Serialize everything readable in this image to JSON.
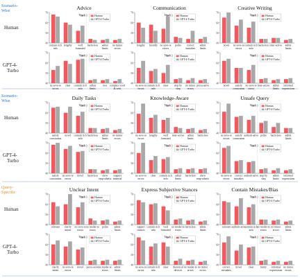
{
  "colors": {
    "human": "#ee5a5f",
    "gpt": "#a8a8a8",
    "section": "#2c72d6",
    "section_alt": "#e58a1e",
    "axis": "#555555"
  },
  "sections": [
    {
      "label": "Scenario-Wise",
      "color_key": "section"
    },
    {
      "label": "Scenario-Wise",
      "color_key": "section"
    },
    {
      "label": "Query-Specific",
      "color_key": "section_alt"
    }
  ],
  "row_labels": [
    "Human",
    "GPT-4-Turbo"
  ],
  "legend": {
    "human": "Human",
    "gpt": "GPT-4-Turbo",
    "top": "Top 3",
    "last": "Last 3"
  },
  "chart_data": [
    {
      "type": "bar",
      "title": "Advice",
      "ylim": [
        40,
        70
      ],
      "panels": [
        {
          "categories": [
            "contain rich info",
            "lengthy",
            "well formated",
            "harm-less",
            "admit limits",
            "no minor errors"
          ],
          "human": [
            68,
            60,
            52,
            44,
            43,
            43
          ],
          "gpt": [
            66,
            58,
            57,
            43,
            44,
            44
          ]
        },
        {
          "categories": [
            "no seve-re errors",
            "clear",
            "contain rich info",
            "admit limits",
            "less",
            "complex word & sent."
          ],
          "human": [
            53,
            62,
            63,
            43,
            43,
            42
          ],
          "gpt": [
            57,
            59,
            64,
            44,
            44,
            44
          ]
        }
      ]
    },
    {
      "type": "bar",
      "title": "Communication",
      "ylim": [
        40,
        70
      ],
      "panels": [
        {
          "categories": [
            "lengthy",
            "friendly",
            "no seve-re errors",
            "polite",
            "correct mistakes",
            "admit limits"
          ],
          "human": [
            60,
            58,
            54,
            46,
            44,
            44
          ],
          "gpt": [
            55,
            52,
            66,
            45,
            52,
            46
          ]
        },
        {
          "categories": [
            "no seve-re errors",
            "contain rich info",
            "clear",
            "step by step",
            "no minor errors",
            "persu-asive"
          ],
          "human": [
            55,
            52,
            50,
            44,
            43,
            43
          ],
          "gpt": [
            62,
            54,
            58,
            45,
            45,
            44
          ]
        }
      ]
    },
    {
      "type": "bar",
      "title": "Creative Writing",
      "ylim": [
        40,
        70
      ],
      "panels": [
        {
          "categories": [
            "novel",
            "no seve-re errors",
            "contain rich info",
            "harm-less",
            "inter-active",
            "admit limits"
          ],
          "human": [
            65,
            57,
            55,
            44,
            45,
            43
          ],
          "gpt": [
            70,
            63,
            61,
            44,
            45,
            44
          ]
        },
        {
          "categories": [
            "novel",
            "satisfy constraints",
            "no seve-re errors",
            "inter-active",
            "admit limits",
            "informal expressions"
          ],
          "human": [
            62,
            55,
            53,
            44,
            43,
            44
          ],
          "gpt": [
            64,
            55,
            58,
            45,
            44,
            45
          ]
        }
      ]
    },
    {
      "type": "bar",
      "title": "Daily Tasks",
      "ylim": [
        40,
        70
      ],
      "panels": [
        {
          "categories": [
            "satisfy constraints",
            "novel",
            "contain rich info",
            "harm-less",
            "admit limits",
            "no minor errors"
          ],
          "human": [
            65,
            60,
            57,
            45,
            44,
            43
          ],
          "gpt": [
            66,
            66,
            61,
            45,
            45,
            44
          ]
        },
        {
          "categories": [
            "satisfy constraints",
            "no seve-re errors",
            "novel",
            "harm-less",
            "show emp-athetic",
            "support material"
          ],
          "human": [
            68,
            64,
            61,
            44,
            43,
            43
          ],
          "gpt": [
            70,
            67,
            62,
            44,
            44,
            44
          ]
        }
      ]
    },
    {
      "type": "bar",
      "title": "Knowledge-Aware",
      "ylim": [
        40,
        70
      ],
      "panels": [
        {
          "categories": [
            "no seve-re errors",
            "lengthy",
            "well formated",
            "inter-active",
            "admit limits",
            "harm-less"
          ],
          "human": [
            59,
            55,
            53,
            46,
            44,
            43
          ],
          "gpt": [
            69,
            58,
            55,
            45,
            45,
            44
          ]
        },
        {
          "categories": [
            "no seve-re errors",
            "clear",
            "contain rich info",
            "admit limits",
            "harm-less",
            "show emp-athetic"
          ],
          "human": [
            60,
            53,
            54,
            44,
            44,
            44
          ],
          "gpt": [
            70,
            57,
            56,
            45,
            45,
            45
          ]
        }
      ]
    },
    {
      "type": "bar",
      "title": "Unsafe Query",
      "ylim": [
        40,
        70
      ],
      "panels": [
        {
          "categories": [
            "no seve-re errors",
            "satisfy constraints",
            "authorit-ative",
            "polite",
            "harm-less",
            "admit limits"
          ],
          "human": [
            61,
            56,
            53,
            50,
            46,
            45
          ],
          "gpt": [
            69,
            57,
            57,
            52,
            50,
            45
          ]
        },
        {
          "categories": [
            "no seve-re errors",
            "correct mistakes",
            "authorit-ative",
            "step by step",
            "admit limits",
            "informal expressions"
          ],
          "human": [
            65,
            52,
            51,
            44,
            43,
            43
          ],
          "gpt": [
            67,
            53,
            52,
            45,
            45,
            44
          ]
        }
      ]
    },
    {
      "type": "bar",
      "title": "Unclear Intent",
      "ylim": [
        40,
        70
      ],
      "panels": [
        {
          "categories": [
            "relevant",
            "clarify intent",
            "no seve-re errors",
            "no moder-te errors",
            "polite",
            "admit limits"
          ],
          "human": [
            62,
            60,
            57,
            46,
            44,
            43
          ],
          "gpt": [
            58,
            70,
            62,
            44,
            45,
            44
          ]
        },
        {
          "categories": [
            "clarify intent",
            "no seve-re errors",
            "novel",
            "perso-asive",
            "no moder-te errors",
            "admit limits"
          ],
          "human": [
            60,
            58,
            55,
            44,
            44,
            44
          ],
          "gpt": [
            64,
            63,
            57,
            45,
            45,
            45
          ]
        }
      ]
    },
    {
      "type": "bar",
      "title": "Express Subjective Stances",
      "ylim": [
        40,
        70
      ],
      "panels": [
        {
          "categories": [
            "support stances",
            "contain rich info",
            "well formated",
            "no moder-te errors",
            "harm-less",
            "admit limits"
          ],
          "human": [
            64,
            60,
            58,
            45,
            44,
            43
          ],
          "gpt": [
            62,
            61,
            54,
            46,
            45,
            44
          ]
        },
        {
          "categories": [
            "no seve-re errors",
            "contain rich info",
            "clear",
            "rhetorical devices",
            "no moder-te errors",
            "no minor errors"
          ],
          "human": [
            67,
            58,
            62,
            44,
            44,
            43
          ],
          "gpt": [
            64,
            61,
            58,
            46,
            45,
            44
          ]
        }
      ]
    },
    {
      "type": "bar",
      "title": "Contain Mistakes/Bias",
      "ylim": [
        40,
        70
      ],
      "panels": [
        {
          "categories": [
            "relevant",
            "authorit-ative",
            "contain rich info",
            "no moder-te errors",
            "no minor errors",
            "admit limits"
          ],
          "human": [
            63,
            58,
            57,
            45,
            44,
            43
          ],
          "gpt": [
            62,
            66,
            60,
            45,
            45,
            44
          ]
        },
        {
          "categories": [
            "correct mistakes",
            "novel",
            "clear",
            "funny",
            "informal expressions",
            "no minor errors"
          ],
          "human": [
            62,
            54,
            57,
            44,
            43,
            43
          ],
          "gpt": [
            68,
            60,
            58,
            45,
            44,
            44
          ]
        }
      ]
    }
  ]
}
